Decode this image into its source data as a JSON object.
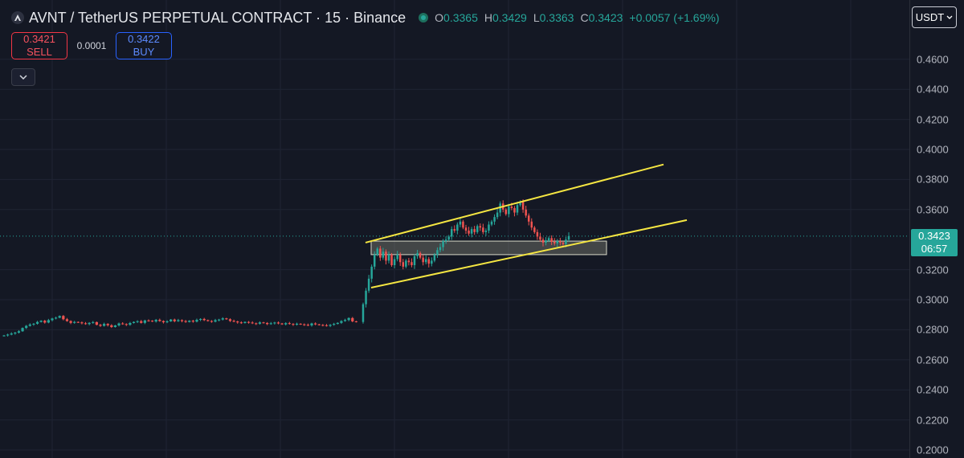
{
  "header": {
    "symbol_title": "AVNT / TetherUS PERPETUAL CONTRACT · 15 · Binance",
    "logo_icon": "avnt-logo-icon",
    "ohlc": {
      "o_label": "O",
      "o_value": "0.3365",
      "h_label": "H",
      "h_value": "0.3429",
      "l_label": "L",
      "l_value": "0.3363",
      "c_label": "C",
      "c_value": "0.3423",
      "change": "+0.0057 (+1.69%)"
    }
  },
  "trade": {
    "sell_price": "0.3421",
    "sell_label": "SELL",
    "spread": "0.0001",
    "buy_price": "0.3422",
    "buy_label": "BUY"
  },
  "currency": {
    "label": "USDT",
    "icon": "chevron-down-icon"
  },
  "collapse_icon": "chevron-down-icon",
  "price_axis": {
    "ticks": [
      "0.4600",
      "0.4400",
      "0.4200",
      "0.4000",
      "0.3800",
      "0.3600",
      "0.3200",
      "0.3000",
      "0.2800",
      "0.2600",
      "0.2400",
      "0.2200",
      "0.2000"
    ],
    "last_price": "0.3423",
    "countdown": "06:57"
  },
  "colors": {
    "up": "#26a69a",
    "down": "#ef5350",
    "trendline": "#f5e642",
    "grid": "#1f2433"
  },
  "chart_data": {
    "type": "candlestick",
    "title": "AVNT / TetherUS PERPETUAL CONTRACT · 15 · Binance",
    "ylim": [
      0.2,
      0.48
    ],
    "last_price": 0.3423,
    "baseline_close_series": [
      0.2762,
      0.2768,
      0.2775,
      0.2781,
      0.279,
      0.2812,
      0.2826,
      0.2835,
      0.284,
      0.2852,
      0.286,
      0.2848,
      0.2864,
      0.2875,
      0.288,
      0.2892,
      0.287,
      0.2858,
      0.2846,
      0.2852,
      0.2849,
      0.2843,
      0.2838,
      0.2846,
      0.2851,
      0.2833,
      0.2826,
      0.2839,
      0.283,
      0.2818,
      0.2829,
      0.2842,
      0.2838,
      0.2833,
      0.2845,
      0.2852,
      0.2857,
      0.2846,
      0.2862,
      0.286,
      0.2855,
      0.2866,
      0.2858,
      0.285,
      0.2856,
      0.2868,
      0.2857,
      0.2864,
      0.2858,
      0.2852,
      0.286,
      0.2854,
      0.2866,
      0.2872,
      0.2864,
      0.2858,
      0.2854,
      0.2864,
      0.2868,
      0.2876,
      0.287,
      0.2859,
      0.2855,
      0.2849,
      0.2845,
      0.2852,
      0.2848,
      0.2843,
      0.284,
      0.2849,
      0.2845,
      0.2838,
      0.2843,
      0.2848,
      0.2842,
      0.2836,
      0.2844,
      0.2839,
      0.2834,
      0.284,
      0.2836,
      0.2833,
      0.2829,
      0.2842,
      0.2836,
      0.2832,
      0.283,
      0.2826,
      0.2833,
      0.2839,
      0.2846,
      0.2858,
      0.2865,
      0.2878,
      0.2856,
      0.2852
    ],
    "rally_close_series": [
      0.297,
      0.306,
      0.314,
      0.322,
      0.33,
      0.334,
      0.328,
      0.332,
      0.326,
      0.33,
      0.323,
      0.327,
      0.33,
      0.325,
      0.322,
      0.326,
      0.325,
      0.323,
      0.329,
      0.331,
      0.328,
      0.325,
      0.327,
      0.324,
      0.326,
      0.33,
      0.333,
      0.335,
      0.339,
      0.34,
      0.342,
      0.347,
      0.346,
      0.35,
      0.352,
      0.348,
      0.346,
      0.344,
      0.347,
      0.345,
      0.349,
      0.348,
      0.345,
      0.346,
      0.35,
      0.352,
      0.355,
      0.358,
      0.364,
      0.36,
      0.357,
      0.362,
      0.361,
      0.358,
      0.363,
      0.365,
      0.36,
      0.356,
      0.352,
      0.348,
      0.345,
      0.342,
      0.34,
      0.338,
      0.3395,
      0.341,
      0.3385,
      0.3375,
      0.339,
      0.338,
      0.337,
      0.34,
      0.3423
    ],
    "trendlines": [
      {
        "name": "",
        "from": [
          0.338,
          0
        ],
        "to": [
          0.39,
          1
        ]
      },
      {
        "name": "",
        "from": [
          0.308,
          0
        ],
        "to": [
          0.353,
          1
        ]
      }
    ],
    "zone": {
      "top": 0.339,
      "bottom": 0.33
    },
    "grid": true
  }
}
